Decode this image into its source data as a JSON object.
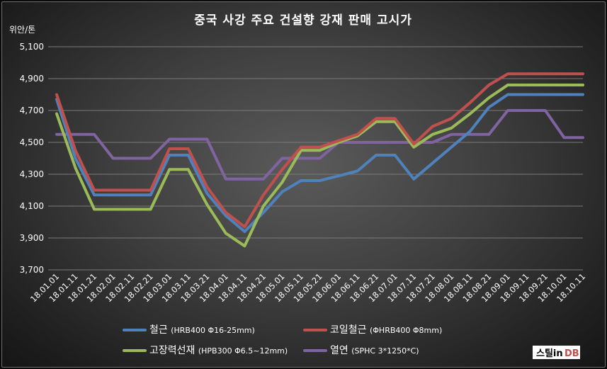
{
  "chart_data": {
    "type": "line",
    "title": "중국 사강 주요 건설향 강재 판매 고시가",
    "ylabel": "위안/톤",
    "ylim": [
      3700,
      5100
    ],
    "y_ticks": [
      "3,700",
      "3,900",
      "4,100",
      "4,300",
      "4,500",
      "4,700",
      "4,900",
      "5,100"
    ],
    "y_tick_values": [
      3700,
      3900,
      4100,
      4300,
      4500,
      4700,
      4900,
      5100
    ],
    "grid": true,
    "legend_position": "bottom",
    "categories": [
      "18.01.01",
      "18.01.11",
      "18.01.21",
      "18.02.01",
      "18.02.11",
      "18.02.21",
      "18.03.01",
      "18.03.11",
      "18.03.21",
      "18.04.01",
      "18.04.11",
      "18.04.21",
      "18.05.01",
      "18.05.11",
      "18.05.21",
      "18.06.01",
      "18.06.11",
      "18.06.21",
      "18.07.01",
      "18.07.11",
      "18.07.21",
      "18.08.01",
      "18.08.11",
      "18.08.21",
      "18.09.01",
      "18.09.11",
      "18.09.21",
      "18.10.01",
      "18.10.11"
    ],
    "series": [
      {
        "name": "철근",
        "name_detail": "(HRB400  Φ16-25mm)",
        "color": "#4f81bd",
        "values": [
          4770,
          4400,
          4170,
          4170,
          4170,
          4170,
          4420,
          4420,
          4180,
          4040,
          3940,
          4060,
          4190,
          4260,
          4260,
          4290,
          4320,
          4420,
          4420,
          4270,
          4370,
          4470,
          4570,
          4720,
          4800,
          4800,
          4800,
          4800,
          4800
        ]
      },
      {
        "name": "코일철근",
        "name_detail": "(ΦHRB400  Φ8mm)",
        "color": "#c0504d",
        "values": [
          4800,
          4450,
          4200,
          4200,
          4200,
          4200,
          4460,
          4460,
          4220,
          4060,
          3970,
          4170,
          4330,
          4470,
          4470,
          4510,
          4550,
          4650,
          4650,
          4490,
          4600,
          4650,
          4750,
          4860,
          4930,
          4930,
          4930,
          4930,
          4930
        ]
      },
      {
        "name": "고장력선재",
        "name_detail": "(HPB300  Φ6.5~12mm)",
        "color": "#9bbb59",
        "values": [
          4680,
          4340,
          4080,
          4080,
          4080,
          4080,
          4330,
          4330,
          4110,
          3930,
          3850,
          4100,
          4250,
          4450,
          4450,
          4500,
          4540,
          4630,
          4630,
          4470,
          4550,
          4590,
          4680,
          4780,
          4860,
          4860,
          4860,
          4860,
          4860
        ]
      },
      {
        "name": "열연",
        "name_detail": "(SPHC 3*1250*C)",
        "color": "#8064a2",
        "values": [
          4550,
          4550,
          4550,
          4400,
          4400,
          4400,
          4520,
          4520,
          4520,
          4270,
          4270,
          4270,
          4400,
          4400,
          4400,
          4500,
          4500,
          4500,
          4500,
          4500,
          4500,
          4550,
          4550,
          4550,
          4700,
          4700,
          4700,
          4530,
          4530
        ]
      }
    ]
  },
  "logo": {
    "text_main": "스틸in",
    "text_db": "DB"
  }
}
